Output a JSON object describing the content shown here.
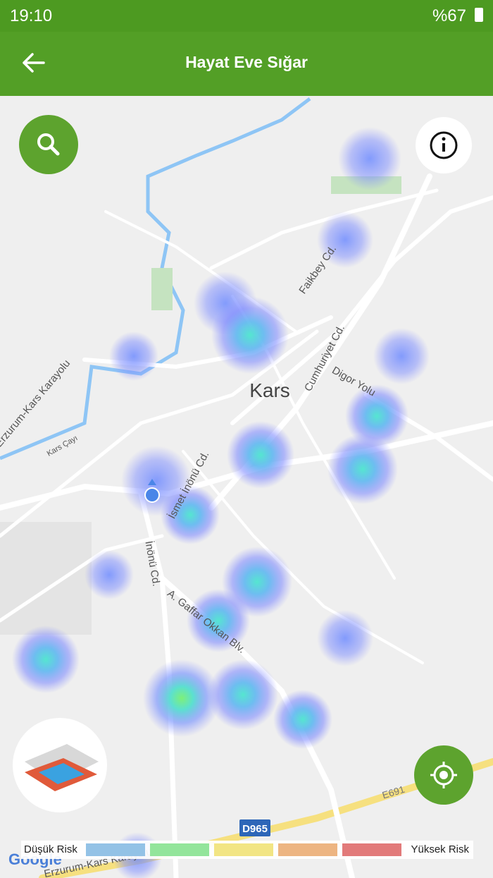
{
  "status_bar": {
    "time": "19:10",
    "battery": "%67"
  },
  "app_bar": {
    "title": "Hayat Eve Sığar"
  },
  "map": {
    "city_label": "Kars",
    "street_labels": [
      "Faikbey Cd.",
      "Cumhuriyet Cd.",
      "Digor Yolu",
      "İsmet İnönü Cd.",
      "İnönü Cd.",
      "A. Gaffar Okkan Blv.",
      "Erzurum-Kars Karayolu",
      "Kars Çayı",
      "Erzurum-Kars Karayolu"
    ],
    "road_shields": [
      "D965",
      "E691"
    ],
    "attribution": "Google"
  },
  "legend": {
    "low": "Düşük Risk",
    "high": "Yüksek Risk"
  }
}
